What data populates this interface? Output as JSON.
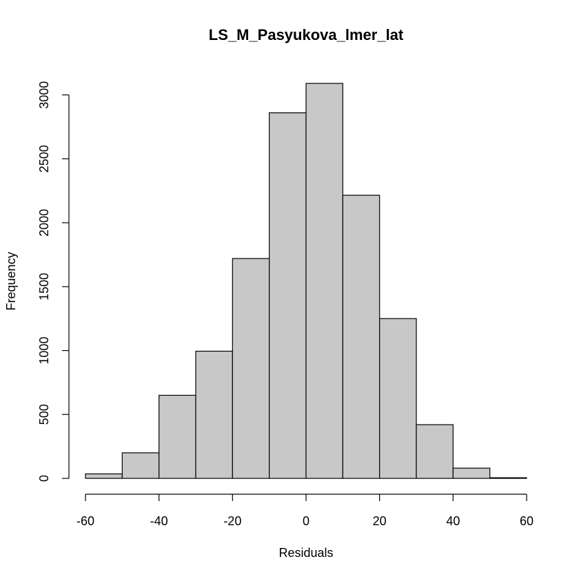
{
  "chart_data": {
    "type": "bar",
    "subtype": "histogram",
    "title": "LS_M_Pasyukova_lmer_lat",
    "xlabel": "Residuals",
    "ylabel": "Frequency",
    "bin_edges": [
      -60,
      -50,
      -40,
      -30,
      -20,
      -10,
      0,
      10,
      20,
      30,
      40,
      50,
      60
    ],
    "values": [
      35,
      200,
      650,
      995,
      1720,
      2860,
      3090,
      2215,
      1250,
      420,
      80,
      5
    ],
    "xlim": [
      -60,
      60
    ],
    "ylim": [
      0,
      3090
    ],
    "x_ticks": [
      -60,
      -40,
      -20,
      0,
      20,
      40,
      60
    ],
    "y_ticks": [
      0,
      500,
      1000,
      1500,
      2000,
      2500,
      3000
    ],
    "bar_color": "#c8c8c8",
    "grid": false,
    "legend": "none"
  }
}
